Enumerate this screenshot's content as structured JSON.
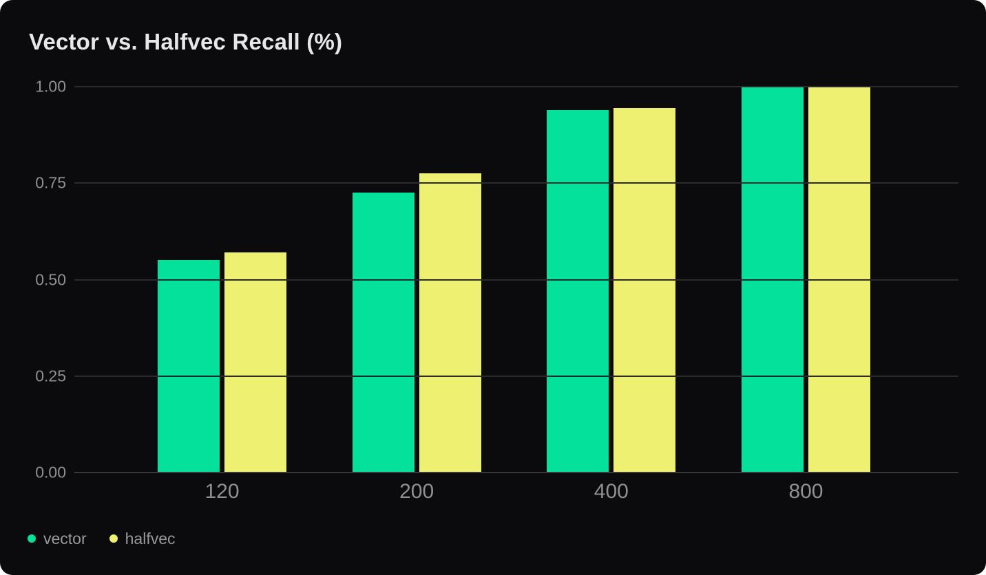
{
  "card": {
    "background": "#0b0b0d",
    "page_background": "#ffffff"
  },
  "colors": {
    "title_text": "#e7e7e9",
    "axis_text": "#8f8f94",
    "legend_text": "#98989c",
    "gridline": "#2b2b2e",
    "baseline": "#39393c"
  },
  "chart_data": {
    "type": "bar",
    "title": "Vector vs. Halfvec Recall (%)",
    "categories": [
      "120",
      "200",
      "400",
      "800"
    ],
    "series": [
      {
        "name": "vector",
        "color": "#04e19b",
        "values": [
          0.55,
          0.725,
          0.94,
          1.0
        ]
      },
      {
        "name": "halfvec",
        "color": "#edf071",
        "values": [
          0.57,
          0.775,
          0.945,
          1.0
        ]
      }
    ],
    "xlabel": "",
    "ylabel": "",
    "ylim": [
      0.0,
      1.0
    ],
    "yticks": [
      "0.00",
      "0.25",
      "0.50",
      "0.75",
      "1.00"
    ],
    "grid": "horizontal",
    "legend_position": "bottom-left"
  }
}
